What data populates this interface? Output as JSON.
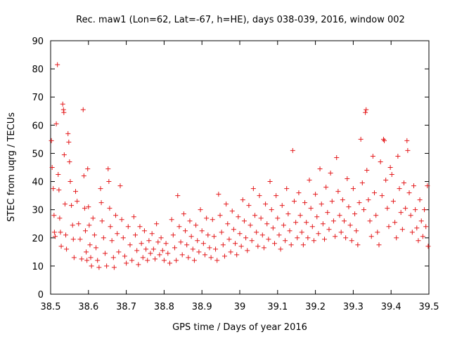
{
  "chart_data": {
    "type": "scatter",
    "title": "Rec. maw1 (Lon=62, Lat=-67, h=HE), days 038-039, 2016, window 002",
    "xlabel": "GPS time / Days of year 2016",
    "ylabel": "STEC from uqrg / TECUs",
    "xlim": [
      38.5,
      39.5
    ],
    "ylim": [
      0,
      90
    ],
    "xticks": [
      "38.5",
      "38.6",
      "38.7",
      "38.8",
      "38.9",
      "39",
      "39.1",
      "39.2",
      "39.3",
      "39.4",
      "39.5"
    ],
    "yticks": [
      "0",
      "10",
      "20",
      "30",
      "40",
      "50",
      "60",
      "70",
      "80",
      "90"
    ],
    "grid": false,
    "legend": "none",
    "marker": "plus",
    "color": "#e41a1c",
    "points": [
      [
        38.502,
        54.5
      ],
      [
        38.504,
        45
      ],
      [
        38.507,
        37.5
      ],
      [
        38.509,
        28
      ],
      [
        38.51,
        22
      ],
      [
        38.512,
        20.5
      ],
      [
        38.515,
        60.5
      ],
      [
        38.518,
        81.5
      ],
      [
        38.52,
        42.5
      ],
      [
        38.522,
        37
      ],
      [
        38.524,
        27
      ],
      [
        38.526,
        22
      ],
      [
        38.528,
        17
      ],
      [
        38.532,
        67.5
      ],
      [
        38.534,
        65.5
      ],
      [
        38.535,
        64.5
      ],
      [
        38.536,
        49.5
      ],
      [
        38.538,
        32
      ],
      [
        38.54,
        21
      ],
      [
        38.542,
        16
      ],
      [
        38.546,
        57
      ],
      [
        38.548,
        54
      ],
      [
        38.55,
        47
      ],
      [
        38.552,
        40
      ],
      [
        38.555,
        31.5
      ],
      [
        38.558,
        24.5
      ],
      [
        38.56,
        19.5
      ],
      [
        38.562,
        13
      ],
      [
        38.566,
        36.5
      ],
      [
        38.57,
        33
      ],
      [
        38.574,
        25
      ],
      [
        38.578,
        19.5
      ],
      [
        38.582,
        12.5
      ],
      [
        38.586,
        65.5
      ],
      [
        38.588,
        42
      ],
      [
        38.59,
        30.5
      ],
      [
        38.592,
        22.5
      ],
      [
        38.594,
        15
      ],
      [
        38.596,
        12
      ],
      [
        38.598,
        44.5
      ],
      [
        38.6,
        31
      ],
      [
        38.602,
        24.5
      ],
      [
        38.604,
        17.5
      ],
      [
        38.606,
        13
      ],
      [
        38.608,
        10
      ],
      [
        38.612,
        27
      ],
      [
        38.616,
        21
      ],
      [
        38.62,
        16.5
      ],
      [
        38.624,
        12
      ],
      [
        38.628,
        9.5
      ],
      [
        38.632,
        37.5
      ],
      [
        38.634,
        32.5
      ],
      [
        38.636,
        26
      ],
      [
        38.64,
        20
      ],
      [
        38.644,
        14.5
      ],
      [
        38.648,
        10
      ],
      [
        38.652,
        44.5
      ],
      [
        38.654,
        40
      ],
      [
        38.656,
        30.5
      ],
      [
        38.658,
        24
      ],
      [
        38.662,
        19
      ],
      [
        38.666,
        13
      ],
      [
        38.668,
        9.5
      ],
      [
        38.672,
        28
      ],
      [
        38.676,
        21.5
      ],
      [
        38.68,
        15
      ],
      [
        38.684,
        38.5
      ],
      [
        38.688,
        26.5
      ],
      [
        38.692,
        20
      ],
      [
        38.696,
        13.5
      ],
      [
        38.7,
        11
      ],
      [
        38.705,
        24
      ],
      [
        38.71,
        17.5
      ],
      [
        38.715,
        12
      ],
      [
        38.72,
        27.5
      ],
      [
        38.724,
        21
      ],
      [
        38.728,
        15.5
      ],
      [
        38.732,
        10.5
      ],
      [
        38.736,
        24
      ],
      [
        38.74,
        18
      ],
      [
        38.744,
        13
      ],
      [
        38.748,
        22.5
      ],
      [
        38.752,
        16
      ],
      [
        38.756,
        12
      ],
      [
        38.76,
        19
      ],
      [
        38.764,
        14.5
      ],
      [
        38.768,
        21.5
      ],
      [
        38.772,
        16
      ],
      [
        38.776,
        12.5
      ],
      [
        38.78,
        25
      ],
      [
        38.784,
        18.5
      ],
      [
        38.788,
        14
      ],
      [
        38.792,
        20
      ],
      [
        38.796,
        15.5
      ],
      [
        38.8,
        12
      ],
      [
        38.805,
        18
      ],
      [
        38.81,
        14.5
      ],
      [
        38.815,
        11
      ],
      [
        38.82,
        26.5
      ],
      [
        38.824,
        21
      ],
      [
        38.828,
        16.5
      ],
      [
        38.832,
        12
      ],
      [
        38.836,
        35
      ],
      [
        38.84,
        24
      ],
      [
        38.844,
        18.5
      ],
      [
        38.848,
        14
      ],
      [
        38.852,
        28.5
      ],
      [
        38.856,
        22.5
      ],
      [
        38.86,
        17.5
      ],
      [
        38.864,
        13
      ],
      [
        38.868,
        26
      ],
      [
        38.872,
        20.5
      ],
      [
        38.876,
        16
      ],
      [
        38.88,
        12
      ],
      [
        38.884,
        24.5
      ],
      [
        38.888,
        19
      ],
      [
        38.892,
        15
      ],
      [
        38.896,
        30
      ],
      [
        38.9,
        22.5
      ],
      [
        38.904,
        18
      ],
      [
        38.908,
        14
      ],
      [
        38.912,
        27
      ],
      [
        38.916,
        21
      ],
      [
        38.92,
        16.5
      ],
      [
        38.924,
        13
      ],
      [
        38.928,
        26.5
      ],
      [
        38.932,
        20.5
      ],
      [
        38.936,
        16
      ],
      [
        38.94,
        12
      ],
      [
        38.944,
        35.5
      ],
      [
        38.948,
        28
      ],
      [
        38.952,
        22
      ],
      [
        38.956,
        17.5
      ],
      [
        38.96,
        13.5
      ],
      [
        38.964,
        32
      ],
      [
        38.968,
        25
      ],
      [
        38.972,
        19.5
      ],
      [
        38.976,
        15
      ],
      [
        38.98,
        29.5
      ],
      [
        38.984,
        23
      ],
      [
        38.988,
        18
      ],
      [
        38.992,
        14
      ],
      [
        38.996,
        27.5
      ],
      [
        39.0,
        21.5
      ],
      [
        39.004,
        17
      ],
      [
        39.008,
        33.5
      ],
      [
        39.012,
        26
      ],
      [
        39.016,
        20
      ],
      [
        39.02,
        15.5
      ],
      [
        39.024,
        31.5
      ],
      [
        39.028,
        24.5
      ],
      [
        39.032,
        19
      ],
      [
        39.036,
        37.5
      ],
      [
        39.04,
        28
      ],
      [
        39.044,
        22
      ],
      [
        39.048,
        17
      ],
      [
        39.052,
        35
      ],
      [
        39.056,
        27
      ],
      [
        39.06,
        21
      ],
      [
        39.064,
        16.5
      ],
      [
        39.068,
        32
      ],
      [
        39.072,
        25
      ],
      [
        39.076,
        19.5
      ],
      [
        39.08,
        40
      ],
      [
        39.084,
        30
      ],
      [
        39.088,
        23.5
      ],
      [
        39.092,
        18
      ],
      [
        39.096,
        35
      ],
      [
        39.1,
        27
      ],
      [
        39.104,
        21
      ],
      [
        39.108,
        16
      ],
      [
        39.112,
        31.5
      ],
      [
        39.116,
        24.5
      ],
      [
        39.12,
        19
      ],
      [
        39.124,
        37.5
      ],
      [
        39.128,
        28.5
      ],
      [
        39.132,
        22.5
      ],
      [
        39.136,
        17.5
      ],
      [
        39.14,
        51
      ],
      [
        39.144,
        33
      ],
      [
        39.148,
        25.5
      ],
      [
        39.152,
        20
      ],
      [
        39.156,
        36
      ],
      [
        39.16,
        28
      ],
      [
        39.164,
        22
      ],
      [
        39.168,
        17.5
      ],
      [
        39.172,
        32.5
      ],
      [
        39.176,
        25.5
      ],
      [
        39.18,
        20
      ],
      [
        39.184,
        40.5
      ],
      [
        39.188,
        30.5
      ],
      [
        39.192,
        24
      ],
      [
        39.196,
        19
      ],
      [
        39.2,
        35.5
      ],
      [
        39.204,
        27.5
      ],
      [
        39.208,
        21.5
      ],
      [
        39.212,
        44.5
      ],
      [
        39.216,
        32
      ],
      [
        39.22,
        25
      ],
      [
        39.224,
        19.5
      ],
      [
        39.228,
        38
      ],
      [
        39.232,
        29
      ],
      [
        39.236,
        23
      ],
      [
        39.24,
        43
      ],
      [
        39.244,
        33
      ],
      [
        39.248,
        26
      ],
      [
        39.252,
        20.5
      ],
      [
        39.256,
        48.5
      ],
      [
        39.26,
        36.5
      ],
      [
        39.264,
        28
      ],
      [
        39.268,
        22
      ],
      [
        39.272,
        33.5
      ],
      [
        39.276,
        26
      ],
      [
        39.28,
        20
      ],
      [
        39.284,
        41
      ],
      [
        39.288,
        31
      ],
      [
        39.292,
        24.5
      ],
      [
        39.296,
        19
      ],
      [
        39.3,
        37.5
      ],
      [
        39.304,
        28.5
      ],
      [
        39.308,
        22.5
      ],
      [
        39.312,
        17.5
      ],
      [
        39.316,
        32.5
      ],
      [
        39.32,
        55
      ],
      [
        39.324,
        39.5
      ],
      [
        39.328,
        30
      ],
      [
        39.332,
        64.5
      ],
      [
        39.334,
        65.5
      ],
      [
        39.336,
        44
      ],
      [
        39.34,
        33.5
      ],
      [
        39.344,
        26
      ],
      [
        39.348,
        20.5
      ],
      [
        39.352,
        49
      ],
      [
        39.356,
        36
      ],
      [
        39.36,
        28
      ],
      [
        39.364,
        22
      ],
      [
        39.368,
        17.5
      ],
      [
        39.372,
        47
      ],
      [
        39.376,
        35
      ],
      [
        39.38,
        55
      ],
      [
        39.382,
        54.5
      ],
      [
        39.386,
        40.5
      ],
      [
        39.39,
        30.5
      ],
      [
        39.394,
        24
      ],
      [
        39.398,
        45
      ],
      [
        39.402,
        42.5
      ],
      [
        39.406,
        33
      ],
      [
        39.41,
        25.5
      ],
      [
        39.414,
        20
      ],
      [
        39.418,
        49
      ],
      [
        39.422,
        37.5
      ],
      [
        39.426,
        29
      ],
      [
        39.43,
        23
      ],
      [
        39.434,
        39.5
      ],
      [
        39.438,
        30.5
      ],
      [
        39.442,
        54.5
      ],
      [
        39.444,
        51
      ],
      [
        39.448,
        36
      ],
      [
        39.452,
        28
      ],
      [
        39.456,
        22
      ],
      [
        39.46,
        38.5
      ],
      [
        39.464,
        30
      ],
      [
        39.468,
        23.5
      ],
      [
        39.472,
        19
      ],
      [
        39.476,
        33.5
      ],
      [
        39.48,
        26
      ],
      [
        39.484,
        20.5
      ],
      [
        39.488,
        30
      ],
      [
        39.492,
        24
      ],
      [
        39.496,
        38.5
      ],
      [
        39.498,
        17
      ]
    ]
  }
}
